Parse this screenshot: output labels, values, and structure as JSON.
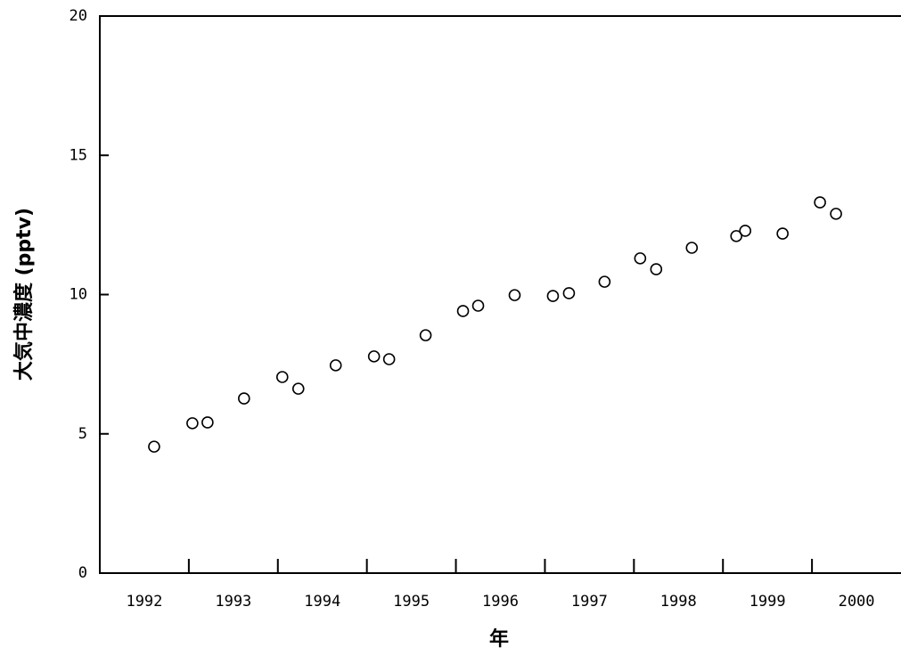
{
  "chart_data": {
    "type": "scatter",
    "x_label": "年",
    "y_label": "大気中濃度 (pptv)",
    "series": [
      {
        "color": "#000000",
        "x": [
          1992.61,
          1993.04,
          1993.21,
          1993.62,
          1994.05,
          1994.23,
          1994.65,
          1995.08,
          1995.25,
          1995.66,
          1996.08,
          1996.25,
          1996.66,
          1997.09,
          1997.27,
          1997.67,
          1998.07,
          1998.25,
          1998.65,
          1999.15,
          1999.25,
          1999.67,
          2000.09,
          2000.27
        ],
        "values": [
          4.54,
          5.38,
          5.41,
          6.27,
          7.04,
          6.62,
          7.46,
          7.78,
          7.68,
          8.54,
          9.41,
          9.6,
          9.98,
          9.95,
          10.05,
          10.46,
          11.3,
          10.91,
          11.68,
          12.1,
          12.29,
          12.19,
          13.31,
          12.9
        ]
      }
    ],
    "xlim": [
      1992,
      2001
    ],
    "ylim": [
      0,
      20
    ],
    "xticks": [
      {
        "value": 1992.5,
        "label": "1992"
      },
      {
        "value": 1993.5,
        "label": "1993"
      },
      {
        "value": 1994.5,
        "label": "1994"
      },
      {
        "value": 1995.5,
        "label": "1995"
      },
      {
        "value": 1996.5,
        "label": "1996"
      },
      {
        "value": 1997.5,
        "label": "1997"
      },
      {
        "value": 1998.5,
        "label": "1998"
      },
      {
        "value": 1999.5,
        "label": "1999"
      },
      {
        "value": 2000.5,
        "label": "2000"
      }
    ],
    "yticks": [
      0,
      5,
      10,
      15,
      20
    ],
    "grid": false
  }
}
